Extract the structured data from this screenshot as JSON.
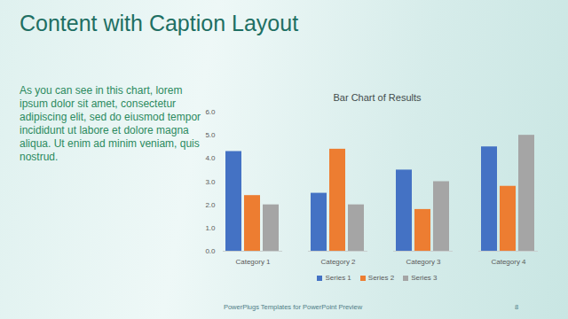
{
  "title": "Content with Caption Layout",
  "caption": "As you can see in this chart, lorem ipsum dolor sit amet, consectetur adipiscing elit, sed do eiusmod tempor incididunt ut labore et dolore magna aliqua. Ut enim ad minim veniam, quis nostrud.",
  "footer": "PowerPlugs Templates for PowerPoint Preview",
  "page_number": 8,
  "chart_data": {
    "type": "bar",
    "title": "Bar Chart of Results",
    "categories": [
      "Category 1",
      "Category 2",
      "Category 3",
      "Category 4"
    ],
    "series": [
      {
        "name": "Series 1",
        "color": "#4472c4",
        "values": [
          4.3,
          2.5,
          3.5,
          4.5
        ]
      },
      {
        "name": "Series 2",
        "color": "#ed7d31",
        "values": [
          2.4,
          4.4,
          1.8,
          2.8
        ]
      },
      {
        "name": "Series 3",
        "color": "#a5a5a5",
        "values": [
          2,
          2,
          3,
          5
        ]
      }
    ],
    "ylim": [
      0,
      6
    ],
    "yticks": [
      0,
      1,
      2,
      3,
      4,
      5,
      6
    ],
    "grid": false,
    "legend": "bottom"
  }
}
